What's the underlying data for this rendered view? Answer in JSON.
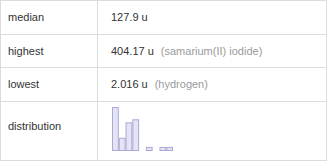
{
  "table": {
    "rows": [
      {
        "label": "median",
        "value": "127.9 u"
      },
      {
        "label": "highest",
        "value": "404.17 u",
        "note": "(samarium(II) iodide)"
      },
      {
        "label": "lowest",
        "value": "2.016 u",
        "note": "(hydrogen)"
      },
      {
        "label": "distribution"
      }
    ]
  },
  "chart_data": {
    "type": "histogram",
    "bins": [
      0,
      50,
      100,
      150,
      200,
      250,
      300,
      350,
      400,
      450
    ],
    "counts": [
      14,
      4,
      9,
      10,
      0,
      1,
      0,
      1,
      1
    ],
    "color": "#e4e4f4",
    "xlim": [
      0,
      450
    ],
    "ylim": [
      0,
      14
    ],
    "tick_labels": false
  }
}
